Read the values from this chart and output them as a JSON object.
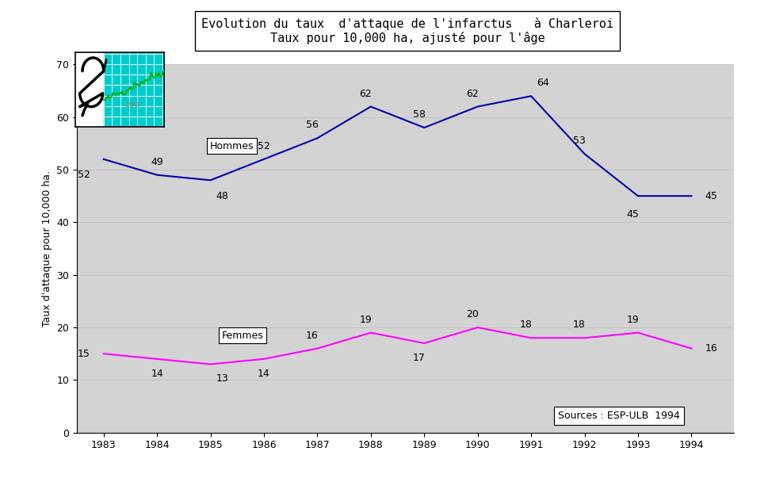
{
  "title_line1": "Evolution du taux  d'attaque de l'infarctus   à Charleroi",
  "title_line2": "Taux pour 10,000 ha, ajusté pour l'âge",
  "ylabel": "Taux d'attaque pour 10,000 ha.",
  "years": [
    1983,
    1984,
    1985,
    1986,
    1987,
    1988,
    1989,
    1990,
    1991,
    1992,
    1993,
    1994
  ],
  "hommes": [
    52,
    49,
    48,
    52,
    56,
    62,
    58,
    62,
    64,
    53,
    45,
    45
  ],
  "femmes": [
    15,
    14,
    13,
    14,
    16,
    19,
    17,
    20,
    18,
    18,
    19,
    16
  ],
  "hommes_color": "#0000AA",
  "femmes_color": "#FF00FF",
  "bg_color": "#D3D3D3",
  "fig_bg": "#FFFFFF",
  "ylim": [
    0,
    70
  ],
  "xlim": [
    1982.5,
    1994.8
  ],
  "yticks": [
    0,
    10,
    20,
    30,
    40,
    50,
    60,
    70
  ],
  "xticks": [
    1983,
    1984,
    1985,
    1986,
    1987,
    1988,
    1989,
    1990,
    1991,
    1992,
    1993,
    1994
  ],
  "source_text": "Sources : ESP-ULB  1994",
  "hommes_label": "Hommes",
  "femmes_label": "Femmes",
  "label_fontsize": 9,
  "title_fontsize": 11,
  "annot_fontsize": 9,
  "logo_cyan": "#00CCCC",
  "logo_green": "#00AA00",
  "logo_black": "#000000",
  "logo_gray": "#888888"
}
